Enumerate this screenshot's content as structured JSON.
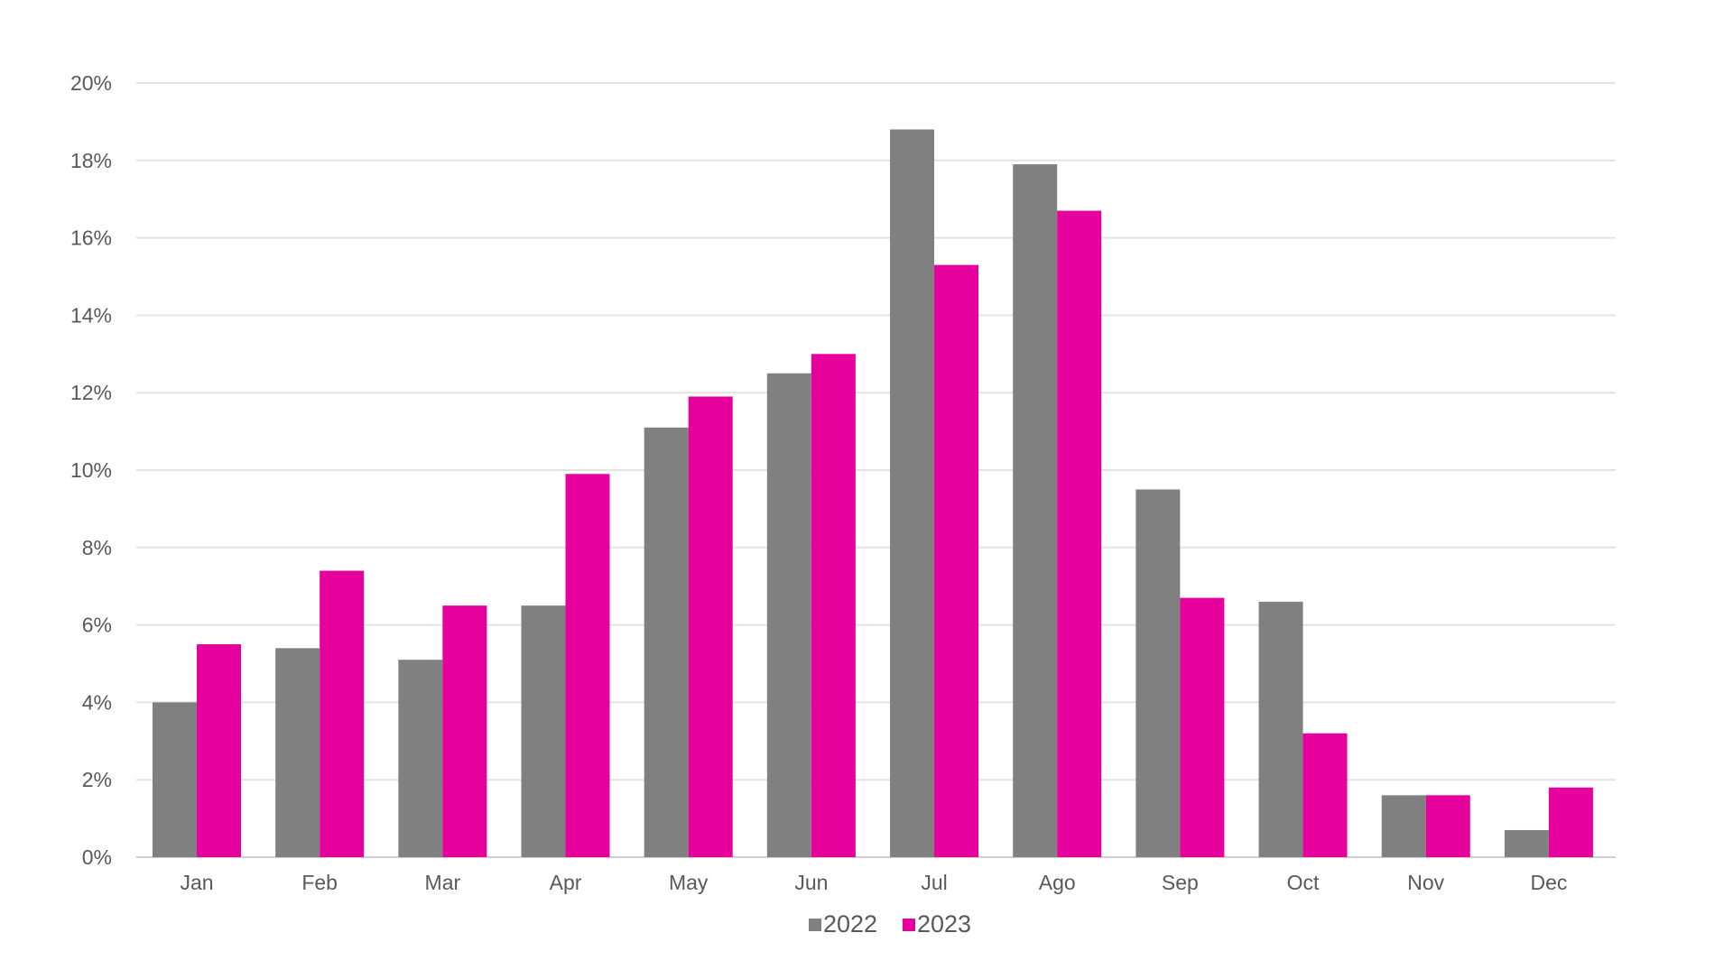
{
  "chart_data": {
    "type": "bar",
    "title": "",
    "xlabel": "",
    "ylabel": "",
    "categories": [
      "Jan",
      "Feb",
      "Mar",
      "Apr",
      "May",
      "Jun",
      "Jul",
      "Ago",
      "Sep",
      "Oct",
      "Nov",
      "Dec"
    ],
    "series": [
      {
        "name": "2022",
        "color": "#808080",
        "values": [
          4.0,
          5.4,
          5.1,
          6.5,
          11.1,
          12.5,
          18.8,
          17.9,
          9.5,
          6.6,
          1.6,
          0.7
        ]
      },
      {
        "name": "2023",
        "color": "#E6009C",
        "values": [
          5.5,
          7.4,
          6.5,
          9.9,
          11.9,
          13.0,
          15.3,
          16.7,
          6.7,
          3.2,
          1.6,
          1.8
        ]
      }
    ],
    "ylim": [
      0,
      20
    ],
    "yticks": [
      0,
      2,
      4,
      6,
      8,
      10,
      12,
      14,
      16,
      18,
      20
    ],
    "ytick_labels": [
      "0%",
      "2%",
      "4%",
      "6%",
      "8%",
      "10%",
      "12%",
      "14%",
      "16%",
      "18%",
      "20%"
    ],
    "grid": true,
    "legend_position": "bottom",
    "unit": "%"
  }
}
